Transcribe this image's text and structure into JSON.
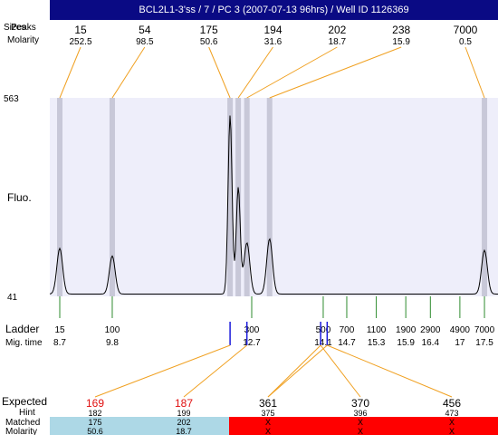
{
  "title": "BCL2L1-3'ss / 7 / PC 3 (2007-07-13 96hrs) / Well ID 1126369",
  "labels": {
    "sizes": "Sizes",
    "peaks": "Peaks",
    "molarity": "Molarity",
    "fluo": "Fluo.",
    "ladder": "Ladder",
    "mig_time": "Mig. time",
    "expected": "Expected",
    "hint": "Hint",
    "matched": "Matched",
    "molarity_bottom": "Molarity"
  },
  "colors": {
    "title_bg": "#0a0a84",
    "plot_bg": "#eeeefa",
    "peak_band": "#c8c8d8",
    "connector": "#f0a020",
    "ladder_tick": "#2e8b2e",
    "marker": "#1a1adb",
    "expected_red": "#e01010",
    "matched_ok": "#add8e6",
    "matched_fail": "#ff0000"
  },
  "chart_data": {
    "type": "line",
    "ylabel": "Fluo.",
    "ylim": [
      41,
      563
    ],
    "yticks": [
      "563",
      "41"
    ],
    "peaks": [
      {
        "size": "15",
        "molarity": "252.5",
        "mig_time": 8.7,
        "height": 120
      },
      {
        "size": "54",
        "molarity": "98.5",
        "mig_time": 9.8,
        "height": 100
      },
      {
        "size": "175",
        "molarity": "50.6",
        "mig_time": 12.25,
        "height": 470
      },
      {
        "size": "194",
        "molarity": "31.6",
        "mig_time": 12.42,
        "height": 280
      },
      {
        "size": "202",
        "molarity": "18.7",
        "mig_time": 12.6,
        "height": 135
      },
      {
        "size": "238",
        "molarity": "15.9",
        "mig_time": 13.05,
        "height": 145
      },
      {
        "size": "7000",
        "molarity": "0.5",
        "mig_time": 17.5,
        "height": 115
      }
    ],
    "ladder": [
      {
        "size": "15",
        "time": "8.7"
      },
      {
        "size": "100",
        "time": "9.8"
      },
      {
        "size": "300",
        "time": "12.7"
      },
      {
        "size": "500",
        "time": "14.1"
      },
      {
        "size": "700",
        "time": "14.7"
      },
      {
        "size": "1100",
        "time": "15.3"
      },
      {
        "size": "1900",
        "time": "15.9"
      },
      {
        "size": "2900",
        "time": "16.4"
      },
      {
        "size": "4900",
        "time": "17"
      },
      {
        "size": "7000",
        "time": "17.5"
      }
    ],
    "markers": [
      {
        "mig_time": 12.25
      },
      {
        "mig_time": 12.6
      },
      {
        "mig_time": 14.05
      },
      {
        "mig_time": 14.2
      }
    ],
    "expected": [
      {
        "expected": "169",
        "hint": "182",
        "matched": "175",
        "molarity": "50.6",
        "highlight": true,
        "status": "ok"
      },
      {
        "expected": "187",
        "hint": "199",
        "matched": "202",
        "molarity": "18.7",
        "highlight": true,
        "status": "ok"
      },
      {
        "expected": "361",
        "hint": "375",
        "matched": "X",
        "molarity": "X",
        "highlight": false,
        "status": "fail"
      },
      {
        "expected": "370",
        "hint": "396",
        "matched": "X",
        "molarity": "X",
        "highlight": false,
        "status": "fail"
      },
      {
        "expected": "456",
        "hint": "473",
        "matched": "X",
        "molarity": "X",
        "highlight": false,
        "status": "fail"
      }
    ]
  }
}
